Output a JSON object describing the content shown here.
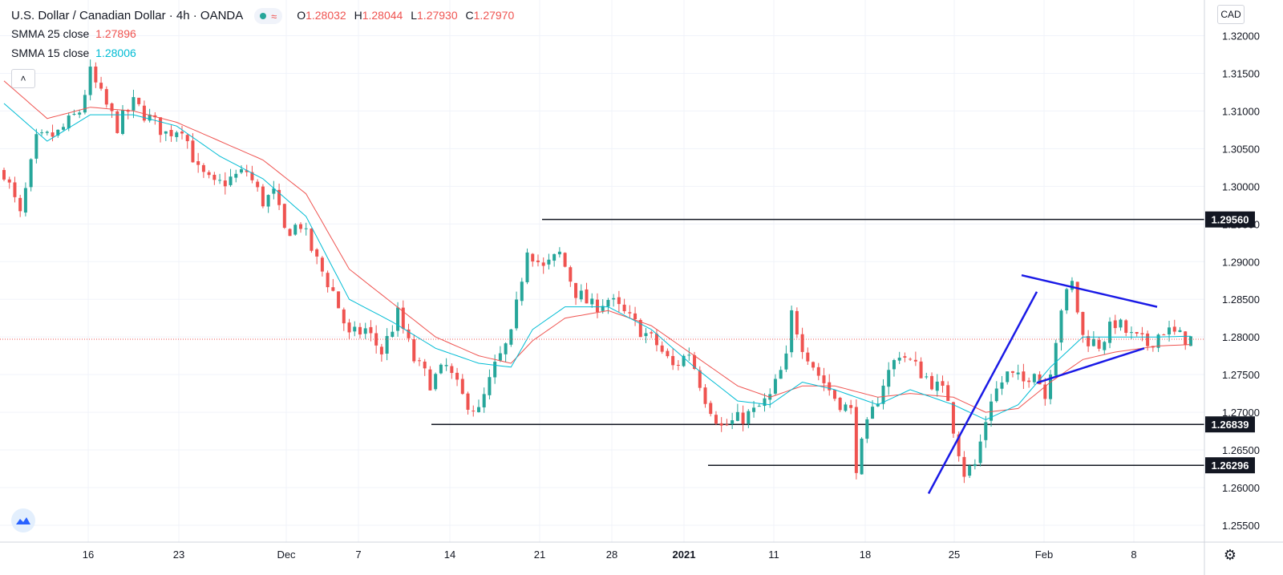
{
  "header": {
    "title": "U.S. Dollar / Canadian Dollar · 4h · OANDA",
    "ohlc": {
      "o_label": "O",
      "o": "1.28032",
      "h_label": "H",
      "h": "1.28044",
      "l_label": "L",
      "l": "1.27930",
      "c_label": "C",
      "c": "1.27970"
    },
    "indicators": [
      {
        "name": "SMMA 25 close",
        "value": "1.27896",
        "color": "#ef5350"
      },
      {
        "name": "SMMA 15 close",
        "value": "1.28006",
        "color": "#00bcd4"
      }
    ],
    "currency": "CAD"
  },
  "chart_data": {
    "type": "candlestick",
    "timeframe": "4h",
    "y_range": [
      1.2515,
      1.3245
    ],
    "y_ticks": [
      "1.32000",
      "1.31500",
      "1.31000",
      "1.30500",
      "1.30000",
      "1.29500",
      "1.29000",
      "1.28500",
      "1.28000",
      "1.27500",
      "1.27000",
      "1.26500",
      "1.26000",
      "1.25500"
    ],
    "x_ticks": [
      {
        "label": "16",
        "bold": false
      },
      {
        "label": "23",
        "bold": false
      },
      {
        "label": "Dec",
        "bold": false
      },
      {
        "label": "7",
        "bold": false
      },
      {
        "label": "14",
        "bold": false
      },
      {
        "label": "21",
        "bold": false
      },
      {
        "label": "28",
        "bold": false
      },
      {
        "label": "2021",
        "bold": true
      },
      {
        "label": "11",
        "bold": false
      },
      {
        "label": "18",
        "bold": false
      },
      {
        "label": "25",
        "bold": false
      },
      {
        "label": "Feb",
        "bold": false
      },
      {
        "label": "8",
        "bold": false
      }
    ],
    "close_path": [
      [
        0,
        1.302
      ],
      [
        3,
        1.296
      ],
      [
        6,
        1.306
      ],
      [
        10,
        1.307
      ],
      [
        14,
        1.31
      ],
      [
        16,
        1.315
      ],
      [
        18,
        1.312
      ],
      [
        21,
        1.308
      ],
      [
        24,
        1.311
      ],
      [
        27,
        1.309
      ],
      [
        30,
        1.307
      ],
      [
        33,
        1.308
      ],
      [
        36,
        1.302
      ],
      [
        39,
        1.3
      ],
      [
        42,
        1.301
      ],
      [
        45,
        1.302
      ],
      [
        48,
        1.298
      ],
      [
        50,
        1.299
      ],
      [
        52,
        1.294
      ],
      [
        55,
        1.295
      ],
      [
        58,
        1.29
      ],
      [
        61,
        1.286
      ],
      [
        64,
        1.28
      ],
      [
        67,
        1.281
      ],
      [
        70,
        1.278
      ],
      [
        73,
        1.283
      ],
      [
        76,
        1.277
      ],
      [
        79,
        1.274
      ],
      [
        82,
        1.276
      ],
      [
        85,
        1.272
      ],
      [
        88,
        1.27
      ],
      [
        91,
        1.276
      ],
      [
        94,
        1.28
      ],
      [
        97,
        1.292
      ],
      [
        100,
        1.289
      ],
      [
        103,
        1.291
      ],
      [
        106,
        1.286
      ],
      [
        109,
        1.284
      ],
      [
        112,
        1.285
      ],
      [
        115,
        1.283
      ],
      [
        118,
        1.281
      ],
      [
        121,
        1.279
      ],
      [
        124,
        1.276
      ],
      [
        127,
        1.278
      ],
      [
        130,
        1.272
      ],
      [
        133,
        1.268
      ],
      [
        136,
        1.269
      ],
      [
        139,
        1.27
      ],
      [
        142,
        1.272
      ],
      [
        145,
        1.277
      ],
      [
        146,
        1.283
      ],
      [
        148,
        1.279
      ],
      [
        151,
        1.275
      ],
      [
        154,
        1.272
      ],
      [
        157,
        1.27
      ],
      [
        158,
        1.263
      ],
      [
        160,
        1.268
      ],
      [
        163,
        1.274
      ],
      [
        166,
        1.278
      ],
      [
        169,
        1.276
      ],
      [
        172,
        1.274
      ],
      [
        175,
        1.272
      ],
      [
        176,
        1.268
      ],
      [
        178,
        1.262
      ],
      [
        180,
        1.263
      ],
      [
        183,
        1.272
      ],
      [
        186,
        1.275
      ],
      [
        189,
        1.274
      ],
      [
        191,
        1.276
      ],
      [
        193,
        1.272
      ],
      [
        196,
        1.284
      ],
      [
        198,
        1.287
      ],
      [
        200,
        1.28
      ],
      [
        203,
        1.279
      ],
      [
        206,
        1.282
      ],
      [
        209,
        1.28
      ],
      [
        212,
        1.279
      ],
      [
        215,
        1.281
      ],
      [
        218,
        1.28
      ],
      [
        220,
        1.2797
      ]
    ],
    "smma15": [
      [
        0,
        1.311
      ],
      [
        8,
        1.306
      ],
      [
        16,
        1.3095
      ],
      [
        24,
        1.3095
      ],
      [
        32,
        1.308
      ],
      [
        40,
        1.304
      ],
      [
        48,
        1.301
      ],
      [
        56,
        1.296
      ],
      [
        64,
        1.285
      ],
      [
        72,
        1.282
      ],
      [
        80,
        1.2785
      ],
      [
        88,
        1.2765
      ],
      [
        94,
        1.276
      ],
      [
        98,
        1.281
      ],
      [
        104,
        1.284
      ],
      [
        112,
        1.284
      ],
      [
        120,
        1.281
      ],
      [
        128,
        1.276
      ],
      [
        136,
        1.2715
      ],
      [
        142,
        1.271
      ],
      [
        148,
        1.274
      ],
      [
        154,
        1.273
      ],
      [
        162,
        1.271
      ],
      [
        168,
        1.273
      ],
      [
        176,
        1.271
      ],
      [
        182,
        1.269
      ],
      [
        188,
        1.271
      ],
      [
        194,
        1.276
      ],
      [
        200,
        1.28
      ],
      [
        206,
        1.28
      ],
      [
        214,
        1.28
      ],
      [
        220,
        1.2801
      ]
    ],
    "smma25": [
      [
        0,
        1.314
      ],
      [
        8,
        1.309
      ],
      [
        16,
        1.3105
      ],
      [
        24,
        1.31
      ],
      [
        32,
        1.3085
      ],
      [
        40,
        1.306
      ],
      [
        48,
        1.3035
      ],
      [
        56,
        1.299
      ],
      [
        64,
        1.289
      ],
      [
        72,
        1.2845
      ],
      [
        80,
        1.28
      ],
      [
        88,
        1.2775
      ],
      [
        94,
        1.2765
      ],
      [
        98,
        1.2795
      ],
      [
        104,
        1.2825
      ],
      [
        112,
        1.2835
      ],
      [
        120,
        1.2815
      ],
      [
        128,
        1.2775
      ],
      [
        136,
        1.2735
      ],
      [
        142,
        1.272
      ],
      [
        148,
        1.2735
      ],
      [
        154,
        1.2735
      ],
      [
        162,
        1.272
      ],
      [
        168,
        1.2725
      ],
      [
        176,
        1.272
      ],
      [
        182,
        1.27
      ],
      [
        188,
        1.2705
      ],
      [
        194,
        1.274
      ],
      [
        200,
        1.277
      ],
      [
        206,
        1.278
      ],
      [
        214,
        1.2788
      ],
      [
        220,
        1.279
      ]
    ],
    "current_price": 1.2797,
    "horizontal_levels": [
      {
        "label": "1.29560",
        "value": 1.2956
      },
      {
        "label": "1.26839",
        "value": 1.26839
      },
      {
        "label": "1.26296",
        "value": 1.26296
      }
    ],
    "trendlines": [
      {
        "color": "#1a1ae6",
        "start": 1.2592,
        "end": 1.286
      },
      {
        "color": "#1a1ae6",
        "start": 1.2882,
        "end": 1.284
      },
      {
        "color": "#1a1ae6",
        "start": 1.2739,
        "end": 1.2785
      }
    ],
    "colors": {
      "up": "#26a69a",
      "down": "#ef5350",
      "smma15": "#00bcd4",
      "smma25": "#ef5350"
    }
  }
}
